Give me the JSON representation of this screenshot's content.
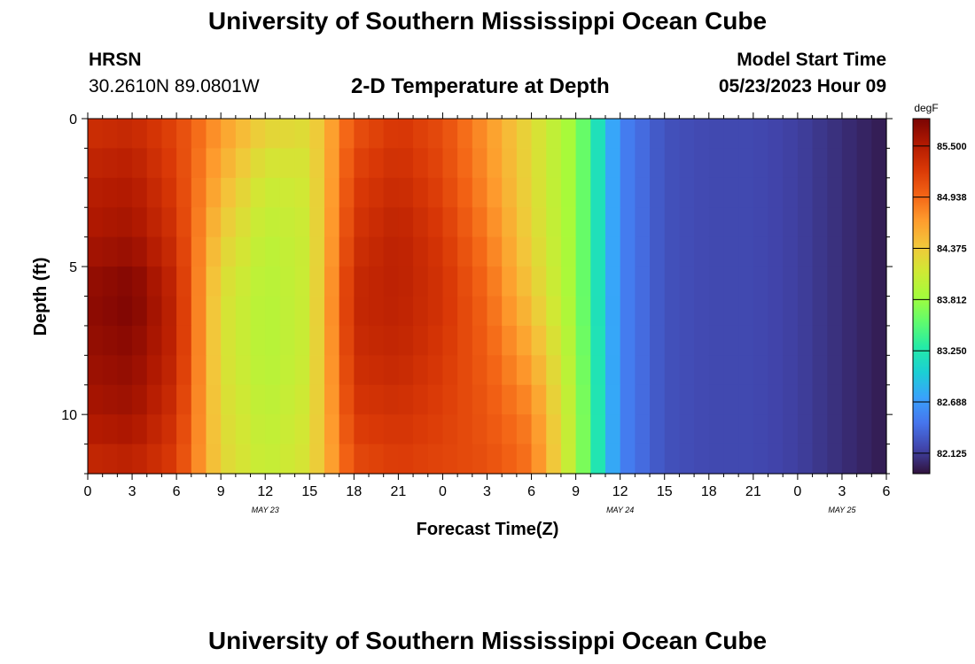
{
  "header": {
    "title": "University of Southern Mississippi Ocean Cube",
    "station": "HRSN",
    "coordinates": "30.2610N  89.0801W",
    "plot_title": "2-D Temperature at Depth",
    "model_start_label": "Model Start Time",
    "model_start_value": "05/23/2023 Hour 09"
  },
  "footer": {
    "title": "University of Southern Mississippi Ocean Cube"
  },
  "chart_data": {
    "type": "heatmap",
    "title": "2-D Temperature at Depth",
    "xlabel": "Forecast Time(Z)",
    "ylabel": "Depth (ft)",
    "x_ticks": [
      "0",
      "3",
      "6",
      "9",
      "12",
      "15",
      "18",
      "21",
      "0",
      "3",
      "6",
      "9",
      "12",
      "15",
      "18",
      "21",
      "0",
      "3",
      "6"
    ],
    "x_tick_hours": [
      0,
      3,
      6,
      9,
      12,
      15,
      18,
      21,
      24,
      27,
      30,
      33,
      36,
      39,
      42,
      45,
      48,
      51,
      54
    ],
    "date_labels": [
      {
        "label": "MAY 23",
        "hour": 12
      },
      {
        "label": "MAY 24",
        "hour": 36
      },
      {
        "label": "MAY 25",
        "hour": 51
      }
    ],
    "xlim": [
      0,
      54
    ],
    "y_ticks": [
      "0",
      "5",
      "10"
    ],
    "y_tick_values": [
      0,
      5,
      10
    ],
    "ylim": [
      0,
      12
    ],
    "y_inverted": true,
    "colorbar": {
      "unit": "degF",
      "ticks": [
        "85.500",
        "84.938",
        "84.375",
        "83.812",
        "83.250",
        "82.688",
        "82.125"
      ],
      "tick_values": [
        85.5,
        84.938,
        84.375,
        83.812,
        83.25,
        82.688,
        82.125
      ],
      "range": [
        81.9,
        85.8
      ],
      "colormap": [
        "#30123b",
        "#4145ab",
        "#4675ed",
        "#39a2fc",
        "#1bcfd4",
        "#24eca6",
        "#61fc6c",
        "#a4fc3b",
        "#d1e834",
        "#f3c63a",
        "#fe9b2d",
        "#f36315",
        "#d93806",
        "#b11901",
        "#7a0403"
      ]
    },
    "hours": [
      0,
      3,
      6,
      9,
      12,
      15,
      18,
      21,
      24,
      27,
      30,
      33,
      36,
      39,
      42,
      45,
      48,
      51,
      54
    ],
    "depths": [
      0,
      2,
      4,
      6,
      8,
      10,
      12
    ],
    "values": [
      [
        85.3,
        85.35,
        85.15,
        84.7,
        84.35,
        84.25,
        85.05,
        85.25,
        85.1,
        84.7,
        84.25,
        83.8,
        82.55,
        82.25,
        82.2,
        82.2,
        82.15,
        82.05,
        81.95
      ],
      [
        85.45,
        85.5,
        85.2,
        84.55,
        84.1,
        84.15,
        85.2,
        85.35,
        85.15,
        84.75,
        84.25,
        83.8,
        82.55,
        82.25,
        82.2,
        82.2,
        82.15,
        82.05,
        81.95
      ],
      [
        85.55,
        85.6,
        85.3,
        84.35,
        84.0,
        84.1,
        85.3,
        85.45,
        85.25,
        84.85,
        84.3,
        83.8,
        82.55,
        82.25,
        82.2,
        82.2,
        82.15,
        82.05,
        81.95
      ],
      [
        85.7,
        85.8,
        85.4,
        84.2,
        83.95,
        84.1,
        85.4,
        85.45,
        85.3,
        84.95,
        84.4,
        83.8,
        82.55,
        82.25,
        82.2,
        82.2,
        82.15,
        82.05,
        81.95
      ],
      [
        85.65,
        85.7,
        85.4,
        84.2,
        83.95,
        84.1,
        85.35,
        85.4,
        85.25,
        85.0,
        84.6,
        83.85,
        82.55,
        82.25,
        82.2,
        82.2,
        82.15,
        82.05,
        81.95
      ],
      [
        85.55,
        85.6,
        85.3,
        84.25,
        84.0,
        84.15,
        85.25,
        85.3,
        85.2,
        85.05,
        84.8,
        83.9,
        82.55,
        82.25,
        82.2,
        82.2,
        82.15,
        82.05,
        81.95
      ],
      [
        85.35,
        85.4,
        85.2,
        84.3,
        84.05,
        84.2,
        85.1,
        85.2,
        85.15,
        85.1,
        84.9,
        83.9,
        82.55,
        82.25,
        82.2,
        82.2,
        82.15,
        82.05,
        81.95
      ]
    ]
  }
}
